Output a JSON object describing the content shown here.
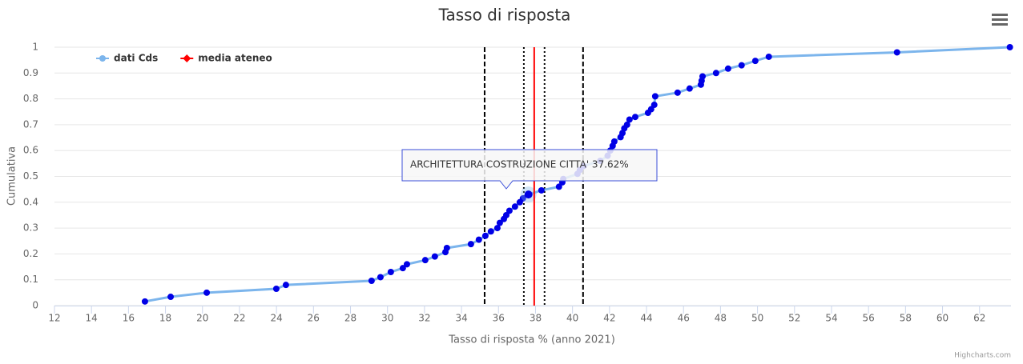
{
  "chart_data": {
    "type": "line",
    "title": "Tasso di risposta",
    "x_label": "Tasso di risposta % (anno 2021)",
    "y_label": "Cumulativa",
    "credits": "Highcharts.com",
    "tooltip": "ARCHITETTURA COSTRUZIONE CITTA' 37.62%",
    "xlim": [
      12,
      63.7
    ],
    "ylim": [
      0,
      1
    ],
    "xticks": [
      12,
      14,
      16,
      18,
      20,
      22,
      24,
      26,
      28,
      30,
      32,
      34,
      36,
      38,
      40,
      42,
      44,
      46,
      48,
      50,
      52,
      54,
      56,
      58,
      60,
      62
    ],
    "yticks": [
      0,
      0.1,
      0.2,
      0.3,
      0.4,
      0.5,
      0.6,
      0.7,
      0.8,
      0.9,
      1
    ],
    "grid": true,
    "legend": "top-left",
    "series": [
      {
        "name": "dati Cds",
        "color": "#7cb5ec",
        "marker_color": "#0000e6",
        "x": [
          16.89,
          18.28,
          20.23,
          23.99,
          24.51,
          29.14,
          29.62,
          30.18,
          30.83,
          31.05,
          32.04,
          32.56,
          33.13,
          33.21,
          34.51,
          34.94,
          35.29,
          35.59,
          35.94,
          36.07,
          36.29,
          36.42,
          36.59,
          36.89,
          37.15,
          37.32,
          37.62,
          38.32,
          39.27,
          39.45,
          39.5,
          40.27,
          40.4,
          40.6,
          41.5,
          41.9,
          42.04,
          42.17,
          42.26,
          42.6,
          42.7,
          42.8,
          42.95,
          43.08,
          43.39,
          44.08,
          44.25,
          44.42,
          44.47,
          45.68,
          46.33,
          46.94,
          46.98,
          47.03,
          47.76,
          48.41,
          49.14,
          49.88,
          50.61,
          57.54,
          63.64
        ],
        "values": [
          0.016,
          0.034,
          0.05,
          0.065,
          0.08,
          0.096,
          0.11,
          0.13,
          0.145,
          0.16,
          0.176,
          0.19,
          0.207,
          0.223,
          0.238,
          0.255,
          0.27,
          0.287,
          0.3,
          0.32,
          0.335,
          0.35,
          0.367,
          0.383,
          0.4,
          0.415,
          0.43,
          0.446,
          0.46,
          0.477,
          0.49,
          0.51,
          0.525,
          0.54,
          0.56,
          0.58,
          0.6,
          0.618,
          0.635,
          0.652,
          0.668,
          0.686,
          0.7,
          0.72,
          0.73,
          0.746,
          0.76,
          0.777,
          0.81,
          0.824,
          0.84,
          0.855,
          0.87,
          0.887,
          0.9,
          0.917,
          0.93,
          0.947,
          0.963,
          0.98,
          1
        ]
      },
      {
        "name": "media ateneo",
        "color": "#ff0000",
        "x": [
          37.93,
          37.93
        ],
        "values": [
          0,
          1
        ]
      }
    ],
    "reference_lines": [
      {
        "x": 35.25,
        "dash": "dashed"
      },
      {
        "x": 37.37,
        "dash": "dotted"
      },
      {
        "x": 38.49,
        "dash": "dotted"
      },
      {
        "x": 40.57,
        "dash": "dashed"
      }
    ]
  }
}
